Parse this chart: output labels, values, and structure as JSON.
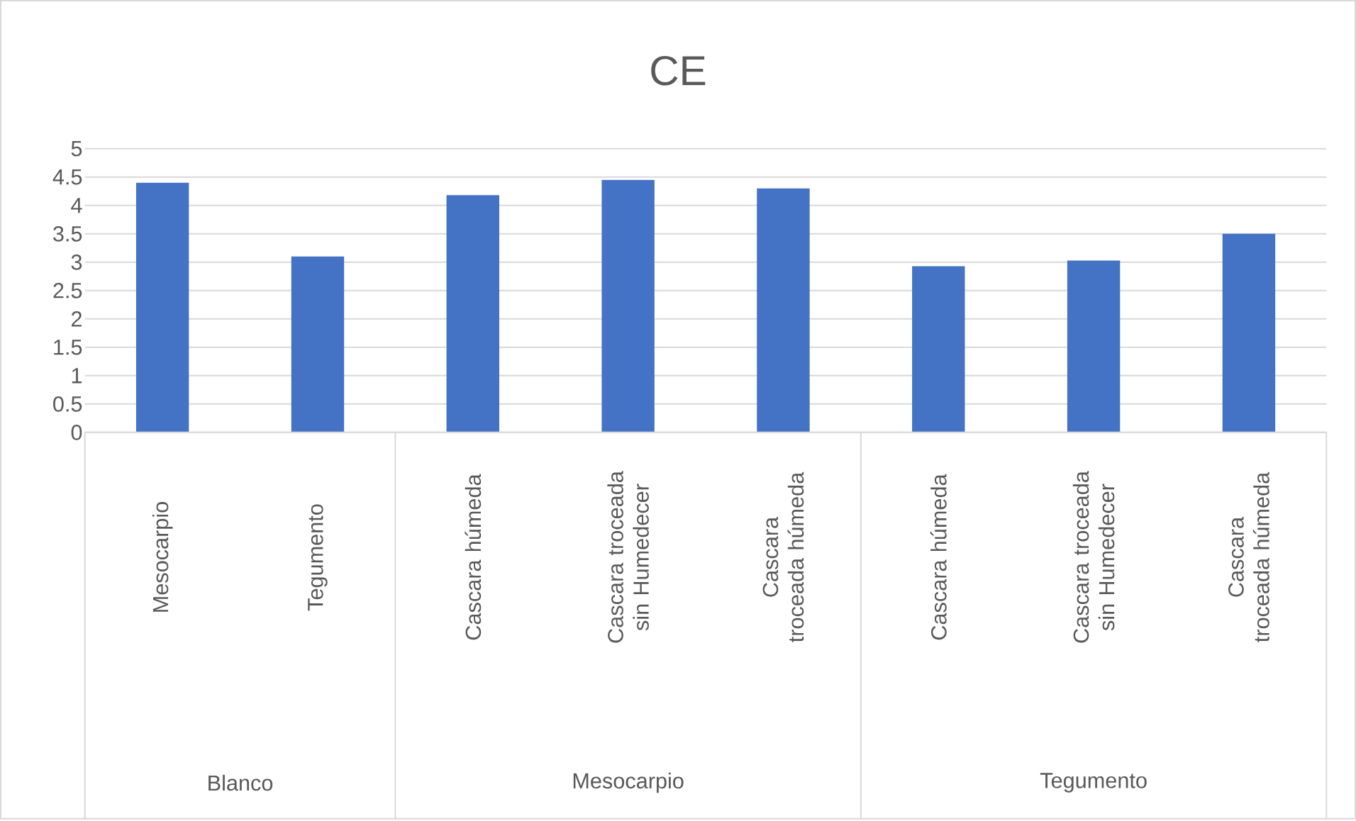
{
  "chart_data": {
    "type": "bar",
    "title": "CE",
    "categories": [
      "Mesocarpio",
      "Tegumento",
      "Cascara húmeda",
      "Cascara troceada sin Humedecer",
      "Cascara troceada húmeda",
      "Cascara húmeda",
      "Cascara troceada sin Humedecer",
      "Cascara troceada húmeda"
    ],
    "values": [
      4.4,
      3.1,
      4.18,
      4.45,
      4.3,
      2.93,
      3.03,
      3.5
    ],
    "color": "#4472c4",
    "ylim": [
      0,
      5
    ],
    "yticks": [
      0,
      0.5,
      1,
      1.5,
      2,
      2.5,
      3,
      3.5,
      4,
      4.5,
      5
    ],
    "grid": "y",
    "annotations": [
      "Blanco",
      "Mesocarpio",
      "Tegumento"
    ]
  }
}
